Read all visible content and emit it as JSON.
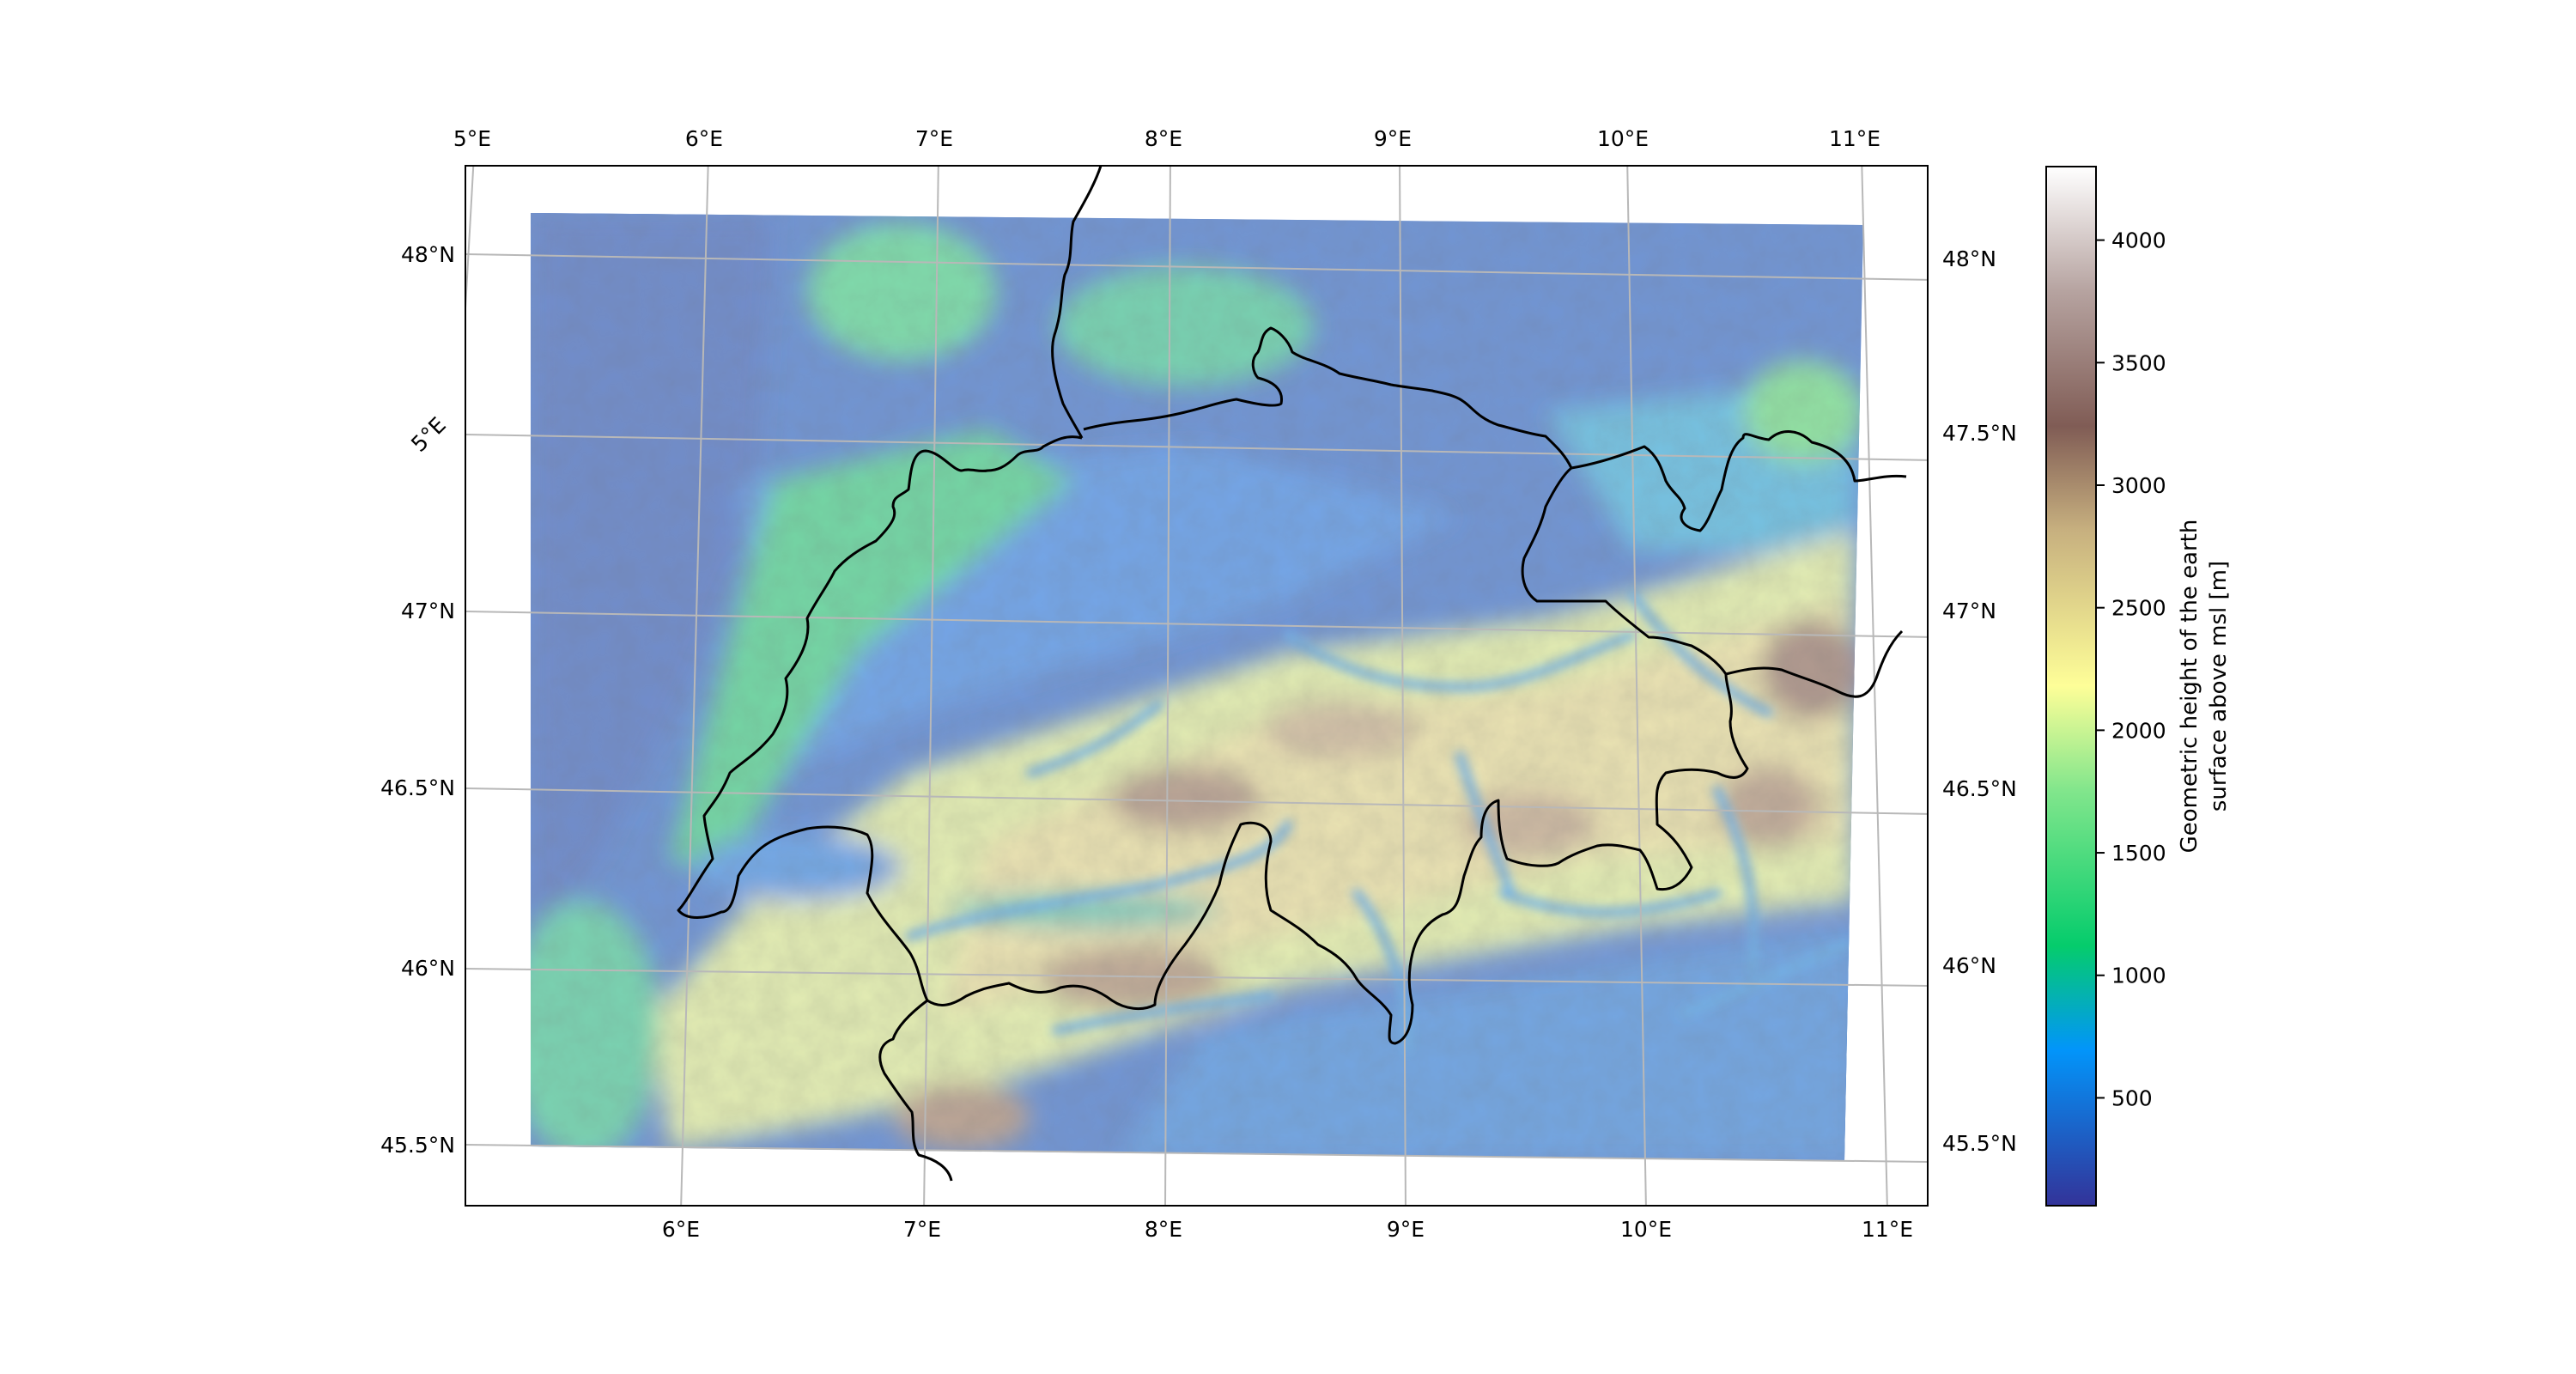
{
  "map": {
    "region": "Switzerland and surrounding Alps",
    "top_lon_labels": [
      "5°E",
      "6°E",
      "7°E",
      "8°E",
      "9°E",
      "10°E",
      "11°E"
    ],
    "bottom_lon_labels": [
      "6°E",
      "7°E",
      "8°E",
      "9°E",
      "10°E",
      "11°E"
    ],
    "left_lat_labels": [
      "48°N",
      "47°N",
      "46.5°N",
      "46°N",
      "45.5°N"
    ],
    "left_rotated_label": "5°E",
    "right_lat_labels": [
      "48°N",
      "47.5°N",
      "47°N",
      "46.5°N",
      "46°N",
      "45.5°N"
    ],
    "gridlines": true,
    "borders_color": "#000000"
  },
  "colorbar": {
    "label_line1": "Geometric height of the earth",
    "label_line2": "surface above msl [m]",
    "ticks": [
      "500",
      "1000",
      "1500",
      "2000",
      "2500",
      "3000",
      "3500",
      "4000"
    ],
    "tick_values": [
      500,
      1000,
      1500,
      2000,
      2500,
      3000,
      3500,
      4000
    ],
    "vmin": 60,
    "vmax": 4300,
    "colormap": "terrain",
    "colors": [
      "#333399",
      "#0295fa",
      "#05cc6c",
      "#82e68c",
      "#fefe98",
      "#c7b07f",
      "#805c55",
      "#b6a3a0",
      "#ffffff"
    ]
  }
}
